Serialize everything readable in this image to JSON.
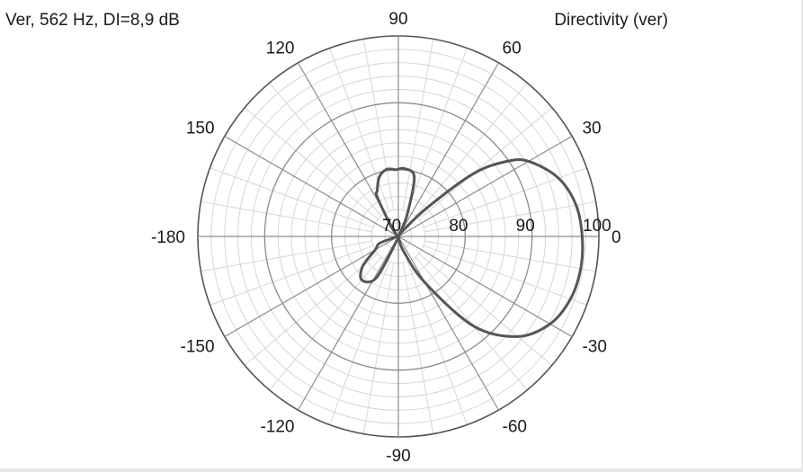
{
  "header": {
    "left_title": "Ver, 562 Hz, DI=8,9 dB",
    "right_title": "Directivity (ver)"
  },
  "chart_data": {
    "type": "polar",
    "angle_ticks": [
      {
        "deg": 0,
        "label": "0"
      },
      {
        "deg": 30,
        "label": "30"
      },
      {
        "deg": 60,
        "label": "60"
      },
      {
        "deg": 90,
        "label": "90"
      },
      {
        "deg": 120,
        "label": "120"
      },
      {
        "deg": 150,
        "label": "150"
      },
      {
        "deg": 180,
        "label": "-180"
      },
      {
        "deg": -150,
        "label": "-150"
      },
      {
        "deg": -120,
        "label": "-120"
      },
      {
        "deg": -90,
        "label": "-90"
      },
      {
        "deg": -60,
        "label": "-60"
      },
      {
        "deg": -30,
        "label": "-30"
      }
    ],
    "radial_range": [
      70,
      100
    ],
    "radial_ticks": [
      {
        "value": 70,
        "label": "70"
      },
      {
        "value": 80,
        "label": "80"
      },
      {
        "value": 90,
        "label": "90"
      },
      {
        "value": 100,
        "label": "100"
      }
    ],
    "minor_radial_step": 2,
    "minor_angle_step_deg": 10,
    "line_color": "#555555",
    "series": [
      {
        "points": [
          [
            0,
            97.5
          ],
          [
            10,
            97.0
          ],
          [
            20,
            95.5
          ],
          [
            30,
            92.5
          ],
          [
            35,
            89.5
          ],
          [
            40,
            84.5
          ],
          [
            45,
            76.0
          ],
          [
            52,
            71.0
          ],
          [
            60,
            70.3
          ],
          [
            68,
            73.5
          ],
          [
            75,
            79.2
          ],
          [
            85,
            80.2
          ],
          [
            92,
            80.0
          ],
          [
            100,
            80.2
          ],
          [
            108,
            79.3
          ],
          [
            115,
            77.5
          ],
          [
            118,
            76.8
          ],
          [
            125,
            72.0
          ],
          [
            135,
            70.5
          ],
          [
            150,
            70.3
          ],
          [
            165,
            70.3
          ],
          [
            180,
            70.3
          ],
          [
            -165,
            70.6
          ],
          [
            -160,
            73.0
          ],
          [
            -150,
            74.0
          ],
          [
            -140,
            77.0
          ],
          [
            -130,
            78.5
          ],
          [
            -118,
            77.0
          ],
          [
            -108,
            70.5
          ],
          [
            -100,
            70.2
          ],
          [
            -90,
            70.1
          ],
          [
            -80,
            70.4
          ],
          [
            -70,
            72.5
          ],
          [
            -60,
            78.0
          ],
          [
            -50,
            87.5
          ],
          [
            -40,
            93.3
          ],
          [
            -30,
            96.2
          ],
          [
            -20,
            97.4
          ],
          [
            -10,
            97.7
          ]
        ]
      }
    ]
  }
}
